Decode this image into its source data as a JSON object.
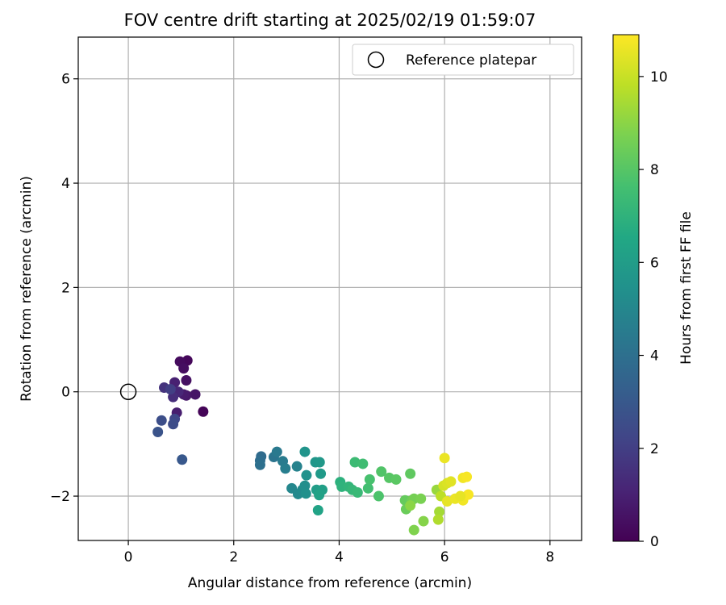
{
  "chart_data": {
    "type": "scatter",
    "title": "FOV centre drift starting at 2025/02/19 01:59:07",
    "xlabel": "Angular distance from reference (arcmin)",
    "ylabel": "Rotation from reference (arcmin)",
    "xlim": [
      -0.95,
      8.6
    ],
    "ylim": [
      -2.85,
      6.8
    ],
    "xticks": [
      0,
      2,
      4,
      6,
      8
    ],
    "yticks": [
      -2,
      0,
      2,
      4,
      6
    ],
    "xtick_labels": [
      "0",
      "2",
      "4",
      "6",
      "8"
    ],
    "ytick_labels": [
      "−2",
      "0",
      "2",
      "4",
      "6"
    ],
    "grid": true,
    "legend": {
      "placement": "top-right",
      "entries": [
        "Reference platepar"
      ]
    },
    "reference_point": {
      "x": 0,
      "y": 0
    },
    "colorbar": {
      "label": "Hours from first FF file",
      "colormap": "viridis",
      "range": [
        0,
        10.9
      ],
      "ticks": [
        0,
        2,
        4,
        6,
        8,
        10
      ],
      "tick_labels": [
        "0",
        "2",
        "4",
        "6",
        "8",
        "10"
      ]
    },
    "points": [
      {
        "x": 1.42,
        "y": -0.38,
        "c": 0.1
      },
      {
        "x": 1.12,
        "y": 0.6,
        "c": 0.2
      },
      {
        "x": 0.98,
        "y": 0.58,
        "c": 0.3
      },
      {
        "x": 1.05,
        "y": 0.45,
        "c": 0.4
      },
      {
        "x": 1.1,
        "y": 0.22,
        "c": 0.5
      },
      {
        "x": 1.27,
        "y": -0.05,
        "c": 0.6
      },
      {
        "x": 1.1,
        "y": -0.07,
        "c": 0.7
      },
      {
        "x": 1.05,
        "y": -0.05,
        "c": 0.8
      },
      {
        "x": 0.92,
        "y": -0.4,
        "c": 0.9
      },
      {
        "x": 0.88,
        "y": 0.18,
        "c": 1.0
      },
      {
        "x": 0.95,
        "y": 0.0,
        "c": 1.2
      },
      {
        "x": 0.85,
        "y": -0.1,
        "c": 1.4
      },
      {
        "x": 0.68,
        "y": 0.08,
        "c": 1.6
      },
      {
        "x": 0.8,
        "y": 0.05,
        "c": 2.0
      },
      {
        "x": 0.88,
        "y": -0.52,
        "c": 2.3
      },
      {
        "x": 0.85,
        "y": -0.62,
        "c": 2.5
      },
      {
        "x": 0.63,
        "y": -0.55,
        "c": 2.6
      },
      {
        "x": 0.56,
        "y": -0.77,
        "c": 2.8
      },
      {
        "x": 1.02,
        "y": -1.3,
        "c": 3.0
      },
      {
        "x": 2.52,
        "y": -1.24,
        "c": 3.8
      },
      {
        "x": 2.5,
        "y": -1.32,
        "c": 3.9
      },
      {
        "x": 2.5,
        "y": -1.4,
        "c": 4.0
      },
      {
        "x": 2.76,
        "y": -1.25,
        "c": 4.2
      },
      {
        "x": 2.82,
        "y": -1.15,
        "c": 4.4
      },
      {
        "x": 2.93,
        "y": -1.33,
        "c": 4.5
      },
      {
        "x": 2.98,
        "y": -1.47,
        "c": 4.6
      },
      {
        "x": 3.2,
        "y": -1.43,
        "c": 4.8
      },
      {
        "x": 3.1,
        "y": -1.85,
        "c": 5.0
      },
      {
        "x": 3.22,
        "y": -1.96,
        "c": 5.1
      },
      {
        "x": 3.3,
        "y": -1.88,
        "c": 5.2
      },
      {
        "x": 3.35,
        "y": -1.8,
        "c": 5.3
      },
      {
        "x": 3.37,
        "y": -1.95,
        "c": 5.4
      },
      {
        "x": 3.38,
        "y": -1.6,
        "c": 5.5
      },
      {
        "x": 3.35,
        "y": -1.15,
        "c": 5.6
      },
      {
        "x": 3.55,
        "y": -1.35,
        "c": 5.7
      },
      {
        "x": 3.63,
        "y": -1.35,
        "c": 5.8
      },
      {
        "x": 3.65,
        "y": -1.57,
        "c": 5.9
      },
      {
        "x": 3.57,
        "y": -1.88,
        "c": 6.0
      },
      {
        "x": 3.68,
        "y": -1.88,
        "c": 6.1
      },
      {
        "x": 3.62,
        "y": -1.98,
        "c": 6.2
      },
      {
        "x": 3.6,
        "y": -2.27,
        "c": 6.3
      },
      {
        "x": 4.02,
        "y": -1.73,
        "c": 6.9
      },
      {
        "x": 4.05,
        "y": -1.82,
        "c": 7.0
      },
      {
        "x": 4.18,
        "y": -1.82,
        "c": 7.1
      },
      {
        "x": 4.25,
        "y": -1.88,
        "c": 7.2
      },
      {
        "x": 4.35,
        "y": -1.93,
        "c": 7.3
      },
      {
        "x": 4.3,
        "y": -1.35,
        "c": 7.4
      },
      {
        "x": 4.45,
        "y": -1.38,
        "c": 7.5
      },
      {
        "x": 4.55,
        "y": -1.85,
        "c": 7.6
      },
      {
        "x": 4.58,
        "y": -1.68,
        "c": 7.7
      },
      {
        "x": 4.75,
        "y": -2.0,
        "c": 7.8
      },
      {
        "x": 4.8,
        "y": -1.53,
        "c": 7.9
      },
      {
        "x": 4.95,
        "y": -1.65,
        "c": 8.0
      },
      {
        "x": 5.08,
        "y": -1.68,
        "c": 8.1
      },
      {
        "x": 5.35,
        "y": -1.57,
        "c": 8.2
      },
      {
        "x": 5.25,
        "y": -2.08,
        "c": 8.3
      },
      {
        "x": 5.27,
        "y": -2.25,
        "c": 8.4
      },
      {
        "x": 5.38,
        "y": -2.08,
        "c": 8.5
      },
      {
        "x": 5.42,
        "y": -2.05,
        "c": 8.6
      },
      {
        "x": 5.55,
        "y": -2.05,
        "c": 8.7
      },
      {
        "x": 5.42,
        "y": -2.65,
        "c": 8.8
      },
      {
        "x": 5.6,
        "y": -2.48,
        "c": 8.9
      },
      {
        "x": 5.35,
        "y": -2.18,
        "c": 9.0
      },
      {
        "x": 5.85,
        "y": -1.88,
        "c": 9.2
      },
      {
        "x": 5.9,
        "y": -2.3,
        "c": 9.4
      },
      {
        "x": 5.88,
        "y": -2.45,
        "c": 9.6
      },
      {
        "x": 5.93,
        "y": -2.0,
        "c": 9.8
      },
      {
        "x": 6.0,
        "y": -1.27,
        "c": 10.6
      },
      {
        "x": 5.98,
        "y": -1.8,
        "c": 10.2
      },
      {
        "x": 6.05,
        "y": -1.75,
        "c": 10.3
      },
      {
        "x": 6.12,
        "y": -1.72,
        "c": 10.4
      },
      {
        "x": 6.05,
        "y": -2.1,
        "c": 10.5
      },
      {
        "x": 6.2,
        "y": -2.05,
        "c": 10.6
      },
      {
        "x": 6.35,
        "y": -1.65,
        "c": 10.7
      },
      {
        "x": 6.42,
        "y": -1.63,
        "c": 10.8
      },
      {
        "x": 6.35,
        "y": -2.08,
        "c": 10.7
      },
      {
        "x": 6.45,
        "y": -1.97,
        "c": 10.8
      },
      {
        "x": 6.3,
        "y": -2.0,
        "c": 10.5
      }
    ]
  }
}
